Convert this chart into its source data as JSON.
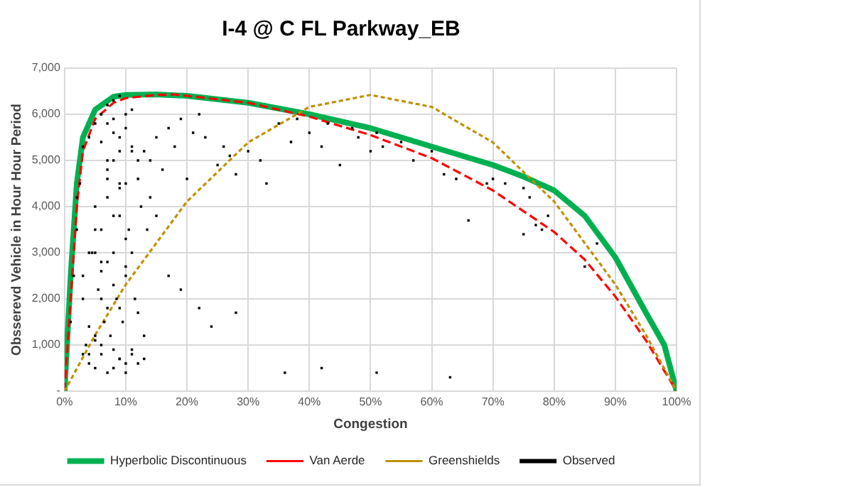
{
  "chart_data": {
    "type": "scatter",
    "title": "I-4 @ C FL Parkway_EB",
    "xlabel": "Congestion",
    "ylabel": "Obsserevd Vehicle in Hour Hour Period",
    "xlim": [
      0,
      100
    ],
    "xticks": [
      {
        "value": 0,
        "label": "0%"
      },
      {
        "value": 10,
        "label": "10%"
      },
      {
        "value": 20,
        "label": "20%"
      },
      {
        "value": 30,
        "label": "30%"
      },
      {
        "value": 40,
        "label": "40%"
      },
      {
        "value": 50,
        "label": "50%"
      },
      {
        "value": 60,
        "label": "60%"
      },
      {
        "value": 70,
        "label": "70%"
      },
      {
        "value": 80,
        "label": "80%"
      },
      {
        "value": 90,
        "label": "90%"
      },
      {
        "value": 100,
        "label": "100%"
      }
    ],
    "ylim": [
      0,
      7000
    ],
    "yticks": [
      {
        "value": 0,
        "label": "-"
      },
      {
        "value": 1000,
        "label": "1,000"
      },
      {
        "value": 2000,
        "label": "2,000"
      },
      {
        "value": 3000,
        "label": "3,000"
      },
      {
        "value": 4000,
        "label": "4,000"
      },
      {
        "value": 5000,
        "label": "5,000"
      },
      {
        "value": 6000,
        "label": "6,000"
      },
      {
        "value": 7000,
        "label": "7,000"
      }
    ],
    "grid": true,
    "legend": "bottom",
    "series": [
      {
        "name": "Hyperbolic Discontinuous",
        "type": "line",
        "color": "#00b050",
        "line_style": "solid",
        "marker": "none",
        "x": [
          0,
          1,
          2,
          3,
          5,
          8,
          10,
          15,
          20,
          30,
          40,
          50,
          60,
          70,
          75,
          80,
          85,
          90,
          95,
          98,
          100
        ],
        "values": [
          0,
          2500,
          4500,
          5500,
          6100,
          6380,
          6420,
          6430,
          6400,
          6250,
          6000,
          5700,
          5300,
          4900,
          4650,
          4350,
          3800,
          2900,
          1700,
          1000,
          0
        ]
      },
      {
        "name": "Van Aerde",
        "type": "line",
        "color": "#ff0000",
        "line_style": "dashed",
        "marker": "none",
        "x": [
          0,
          1,
          2,
          3,
          5,
          8,
          10,
          15,
          18,
          20,
          30,
          40,
          50,
          60,
          70,
          80,
          85,
          90,
          95,
          100
        ],
        "values": [
          0,
          2000,
          4000,
          5200,
          5900,
          6250,
          6350,
          6420,
          6430,
          6400,
          6250,
          5950,
          5550,
          5050,
          4350,
          3450,
          2850,
          2050,
          1100,
          0
        ]
      },
      {
        "name": "Greenshields",
        "type": "line",
        "color": "#bf9000",
        "line_style": "dotted",
        "marker": "none",
        "x": [
          0,
          5,
          10,
          20,
          30,
          40,
          50,
          60,
          70,
          80,
          90,
          95,
          100
        ],
        "values": [
          0,
          1220,
          2310,
          4110,
          5390,
          6160,
          6420,
          6160,
          5390,
          4110,
          2310,
          1220,
          0
        ]
      },
      {
        "name": "Observed",
        "color": "#000000",
        "marker": "square",
        "x": [
          1,
          1.5,
          2,
          2.5,
          3,
          3,
          3.5,
          4,
          4,
          4.5,
          5,
          5,
          5,
          5.5,
          6,
          6,
          6,
          6.5,
          7,
          7,
          7,
          7,
          7.5,
          8,
          8,
          8,
          8,
          8.5,
          9,
          9,
          9,
          9,
          9.5,
          10,
          10,
          10,
          10,
          10.5,
          11,
          11,
          11,
          11.5,
          12,
          12,
          12.5,
          13,
          13,
          13.5,
          14,
          3,
          4,
          5,
          6,
          7,
          8,
          9,
          10,
          11,
          2,
          3,
          4,
          5,
          6,
          7,
          8,
          9,
          10,
          4,
          5,
          6,
          7,
          8,
          9,
          5,
          6,
          7,
          8,
          9,
          10,
          11,
          12,
          6,
          7,
          8,
          9,
          10,
          11,
          12,
          13,
          14,
          15,
          16,
          17,
          18,
          19,
          20,
          21,
          22,
          23,
          25,
          26,
          27,
          28,
          30,
          32,
          33,
          35,
          37,
          38,
          40,
          42,
          43,
          45,
          47,
          48,
          50,
          51,
          52,
          55,
          57,
          60,
          62,
          64,
          66,
          69,
          70,
          72,
          75,
          76,
          77,
          78,
          79,
          85,
          87,
          15,
          17,
          19,
          22,
          24,
          28,
          36,
          42,
          51,
          63,
          75
        ],
        "values": [
          1500,
          2500,
          3500,
          4500,
          5300,
          2000,
          1000,
          600,
          5500,
          3000,
          500,
          4000,
          5800,
          2200,
          800,
          3500,
          6000,
          1500,
          400,
          2800,
          4800,
          6200,
          1200,
          500,
          3000,
          5000,
          6300,
          2000,
          700,
          3800,
          5500,
          6400,
          1500,
          400,
          2500,
          4500,
          6000,
          3500,
          800,
          3000,
          5300,
          2000,
          600,
          5000,
          4000,
          1200,
          5200,
          3500,
          5000,
          2500,
          3000,
          3500,
          2800,
          4200,
          5600,
          4500,
          3300,
          5200,
          4200,
          800,
          800,
          1200,
          1000,
          1800,
          2300,
          1800,
          2700,
          1400,
          3000,
          2600,
          4600,
          3800,
          4400,
          1100,
          2000,
          5000,
          5900,
          5200,
          5700,
          6100,
          4600,
          5400,
          5800,
          900,
          700,
          600,
          900,
          1700,
          700,
          4200,
          5500,
          4800,
          5700,
          5300,
          5900,
          4600,
          5600,
          6000,
          5500,
          4900,
          5300,
          5100,
          4700,
          5200,
          5000,
          4500,
          5800,
          5400,
          5900,
          5600,
          5300,
          5800,
          4900,
          5700,
          5500,
          5200,
          5600,
          5300,
          5400,
          5000,
          5200,
          4700,
          4600,
          3700,
          4500,
          4600,
          4500,
          4400,
          4200,
          3600,
          3500,
          3800,
          2700,
          3200,
          3800,
          2500,
          2200,
          1800,
          1400,
          1700,
          400,
          500,
          400,
          300,
          3400
        ]
      }
    ]
  }
}
